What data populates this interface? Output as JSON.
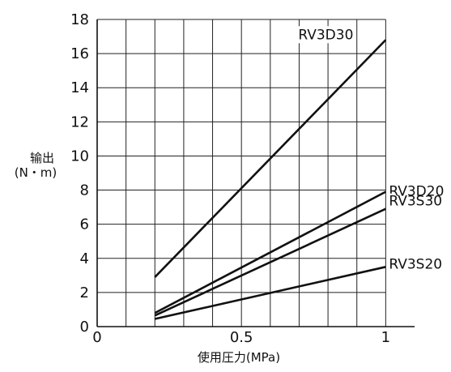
{
  "chart_data": {
    "type": "line",
    "title": "",
    "xlabel": "使用圧力(MPa)",
    "ylabel_line1": "输出",
    "ylabel_line2": "(N・m)",
    "xlim": [
      0,
      1.1
    ],
    "ylim": [
      0,
      18
    ],
    "x_gridlines": [
      0.1,
      0.2,
      0.3,
      0.4,
      0.5,
      0.6,
      0.7,
      0.8,
      0.9,
      1.0
    ],
    "y_gridlines": [
      2,
      4,
      6,
      8,
      10,
      12,
      14,
      16,
      18
    ],
    "x_ticks": [
      0,
      0.5,
      1
    ],
    "x_tick_labels": [
      "0",
      "0.5",
      "1"
    ],
    "y_ticks": [
      0,
      2,
      4,
      6,
      8,
      10,
      12,
      14,
      16,
      18
    ],
    "y_tick_labels": [
      "0",
      "2",
      "4",
      "6",
      "8",
      "10",
      "12",
      "14",
      "16",
      "18"
    ],
    "grid": true,
    "series": [
      {
        "name": "RV3D30",
        "x": [
          0.2,
          1.0
        ],
        "y": [
          2.9,
          16.8
        ]
      },
      {
        "name": "RV3D20",
        "x": [
          0.2,
          1.0
        ],
        "y": [
          0.8,
          7.9
        ]
      },
      {
        "name": "RV3S30",
        "x": [
          0.2,
          1.0
        ],
        "y": [
          0.65,
          6.9
        ]
      },
      {
        "name": "RV3S20",
        "x": [
          0.2,
          1.0
        ],
        "y": [
          0.45,
          3.5
        ]
      }
    ]
  }
}
